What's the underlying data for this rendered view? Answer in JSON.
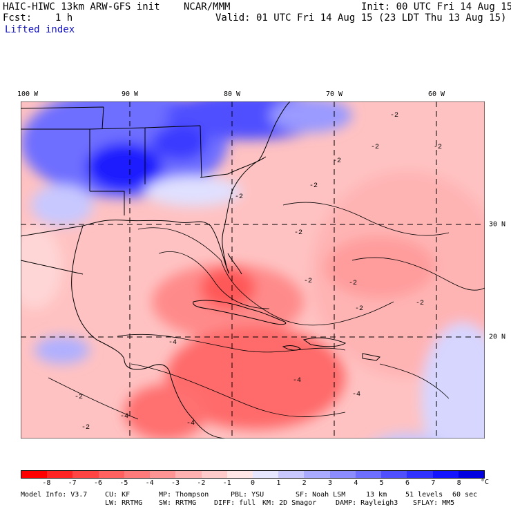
{
  "header": {
    "model_title": "HAIC-HIWC 13km ARW-GFS init",
    "center": "NCAR/MMM",
    "init": "Init: 00 UTC Fri 14 Aug 15",
    "fcst": "Fcst:    1 h",
    "valid": "Valid: 01 UTC Fri 14 Aug 15 (23 LDT Thu 13 Aug 15)",
    "field": "Lifted index"
  },
  "map": {
    "lon_labels": [
      "100 W",
      "90 W",
      "80 W",
      "70 W",
      "60 W"
    ],
    "lat_labels": [
      "30 N",
      "20 N"
    ],
    "contour_labels": [
      "-2",
      "-2",
      "-2",
      "-2",
      "-2",
      "-2",
      "-2",
      "-2",
      "-2",
      "-2",
      "-2",
      "-2",
      "-2",
      "-4",
      "-4",
      "-4",
      "-4",
      "-4"
    ]
  },
  "colorbar": {
    "ticks": [
      "-8",
      "-7",
      "-6",
      "-5",
      "-4",
      "-3",
      "-2",
      "-1",
      "0",
      "1",
      "2",
      "3",
      "4",
      "5",
      "6",
      "7",
      "8"
    ],
    "unit": "°C",
    "colors": [
      "#ff0000",
      "#ff2424",
      "#ff4444",
      "#ff6060",
      "#ff7a7a",
      "#ff9494",
      "#ffb0b0",
      "#ffcaca",
      "#ffe6e6",
      "#e6e6ff",
      "#c8c8ff",
      "#aaaaff",
      "#8c8cff",
      "#6e6eff",
      "#5050ff",
      "#3232ff",
      "#1414ff",
      "#0000e0"
    ]
  },
  "footer": {
    "line1": [
      "Model Info: V3.7",
      "CU: KF",
      "MP: Thompson",
      "PBL: YSU",
      "SF: Noah LSM",
      "13 km",
      "51 levels",
      "60 sec"
    ],
    "line2": [
      "LW: RRTMG",
      "SW: RRTMG",
      "DIFF: full",
      "KM: 2D Smagor",
      "DAMP: Rayleigh3",
      "SFLAY: MM5"
    ]
  }
}
